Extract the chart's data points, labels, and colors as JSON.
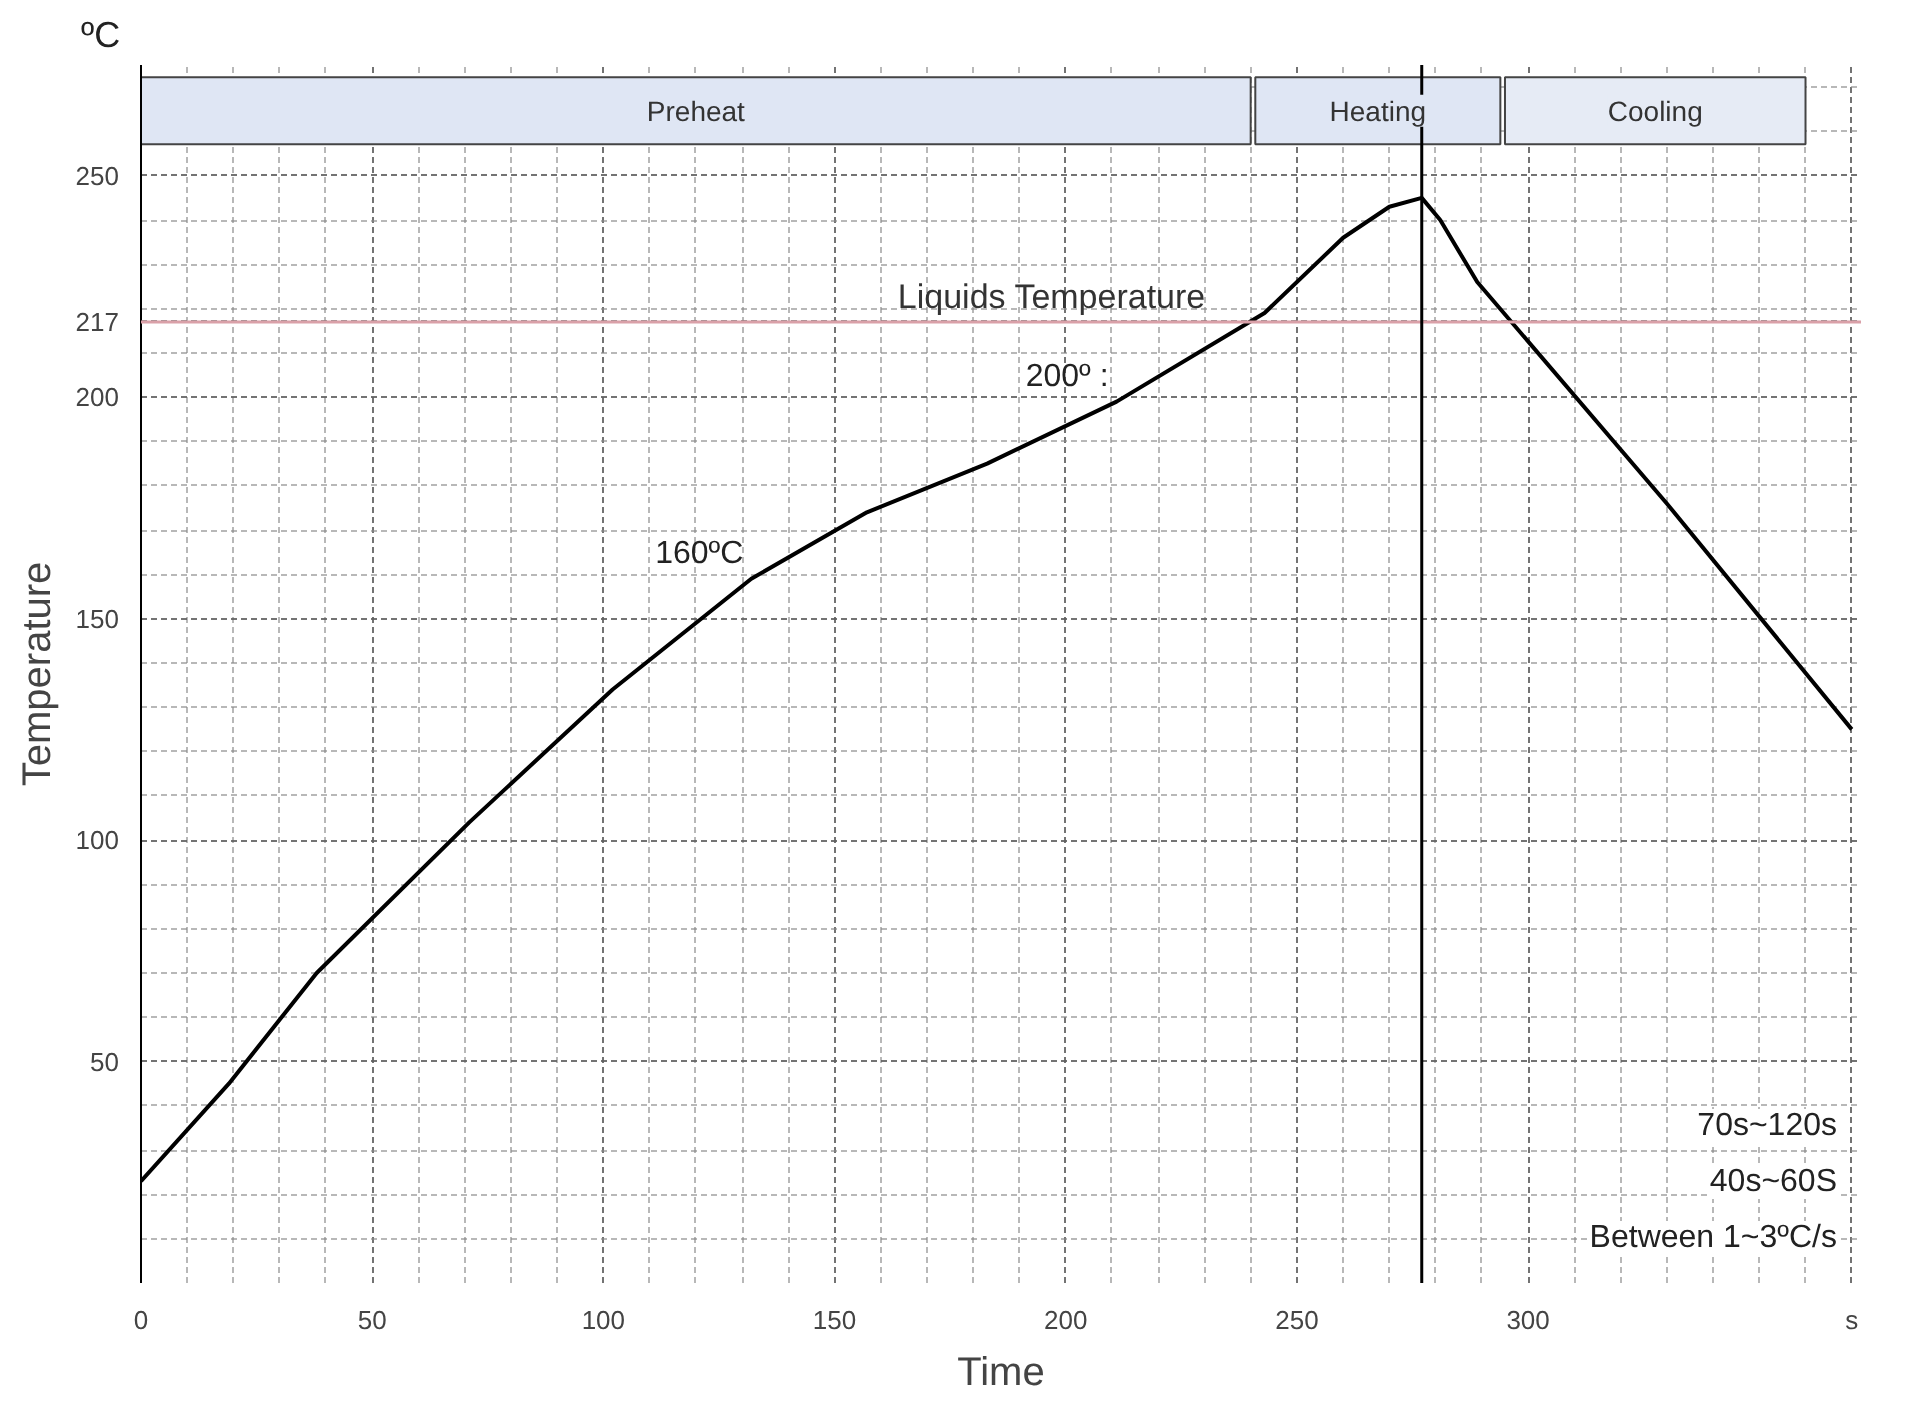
{
  "chart_data": {
    "type": "line",
    "xlabel": "Time",
    "ylabel": "Temperature",
    "x": [
      0,
      19,
      38,
      71,
      102,
      132,
      157,
      183,
      211,
      243,
      260,
      270,
      277,
      281,
      289,
      330,
      370
    ],
    "series": [
      {
        "color": "#000000",
        "values": [
          23,
          45,
          70,
          104,
          134,
          159,
          174,
          185,
          199,
          219,
          236,
          243,
          245,
          240,
          226,
          176,
          125
        ]
      }
    ],
    "xlim": [
      0,
      372
    ],
    "ylim": [
      0,
      275
    ],
    "xticks": [
      0,
      50,
      100,
      150,
      200,
      250,
      300,
      {
        "value": 370,
        "label": "s"
      }
    ],
    "yticks": [
      50,
      100,
      150,
      200,
      217,
      250
    ],
    "grid": true,
    "marker": "none",
    "line_style": "solid",
    "ref_lines": [
      {
        "axis": "y",
        "value": 217,
        "label": "Liquids Temperature",
        "color": "#d9a0a8"
      },
      {
        "axis": "x",
        "value": 277,
        "color": "#000000"
      }
    ],
    "bands": [
      {
        "axis": "x",
        "from": 0,
        "to": 240,
        "label": "Preheat",
        "color": "#dfe6f4"
      },
      {
        "axis": "x",
        "from": 241,
        "to": 294,
        "label": "Heating",
        "color": "#dfe6f4"
      },
      {
        "axis": "x",
        "from": 295,
        "to": 360,
        "label": "Cooling",
        "color": "#e6ebf5"
      }
    ],
    "annotations": [
      "ºC",
      {
        "text": "160ºC",
        "x": 132,
        "y": 159
      },
      {
        "text": "200º :",
        "x": 211,
        "y": 199
      },
      "70s~120s",
      "40s~60S",
      "Between 1~3ºC/s"
    ]
  }
}
